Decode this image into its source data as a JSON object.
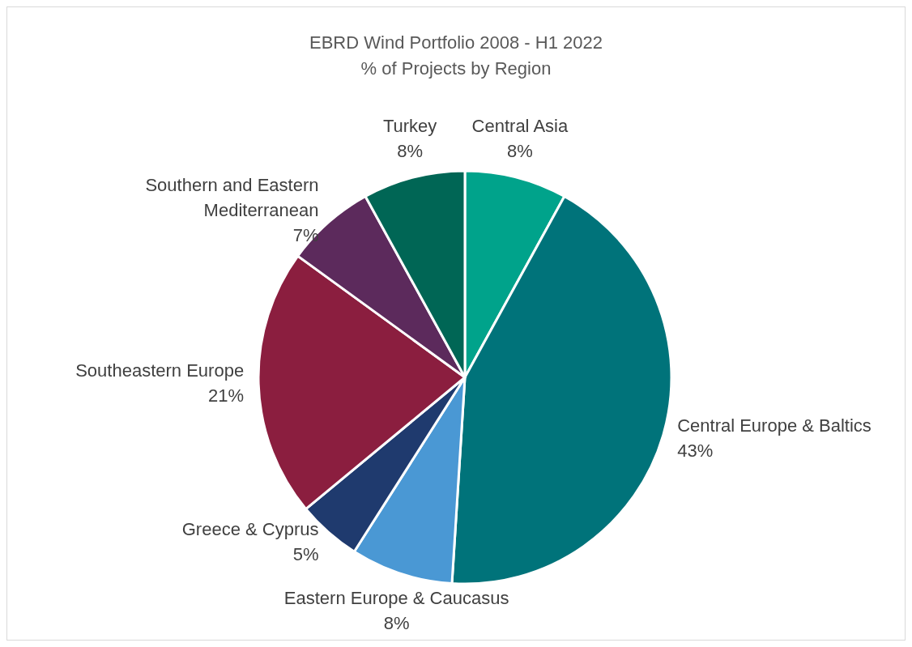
{
  "chart_data": {
    "type": "pie",
    "title": "EBRD Wind Portfolio 2008 - H1 2022",
    "subtitle": "% of Projects by Region",
    "categories": [
      "Central Asia",
      "Central Europe & Baltics",
      "Eastern Europe & Caucasus",
      "Greece & Cyprus",
      "Southeastern Europe",
      "Southern and Eastern Mediterranean",
      "Turkey"
    ],
    "values": [
      8,
      43,
      8,
      5,
      21,
      7,
      8
    ],
    "value_labels": [
      "8%",
      "43%",
      "8%",
      "5%",
      "21%",
      "7%",
      "8%"
    ],
    "colors": [
      "#00a38b",
      "#00737a",
      "#4a98d4",
      "#1f3a6e",
      "#8b1e3f",
      "#5c2a5c",
      "#006655"
    ],
    "legend": false
  }
}
